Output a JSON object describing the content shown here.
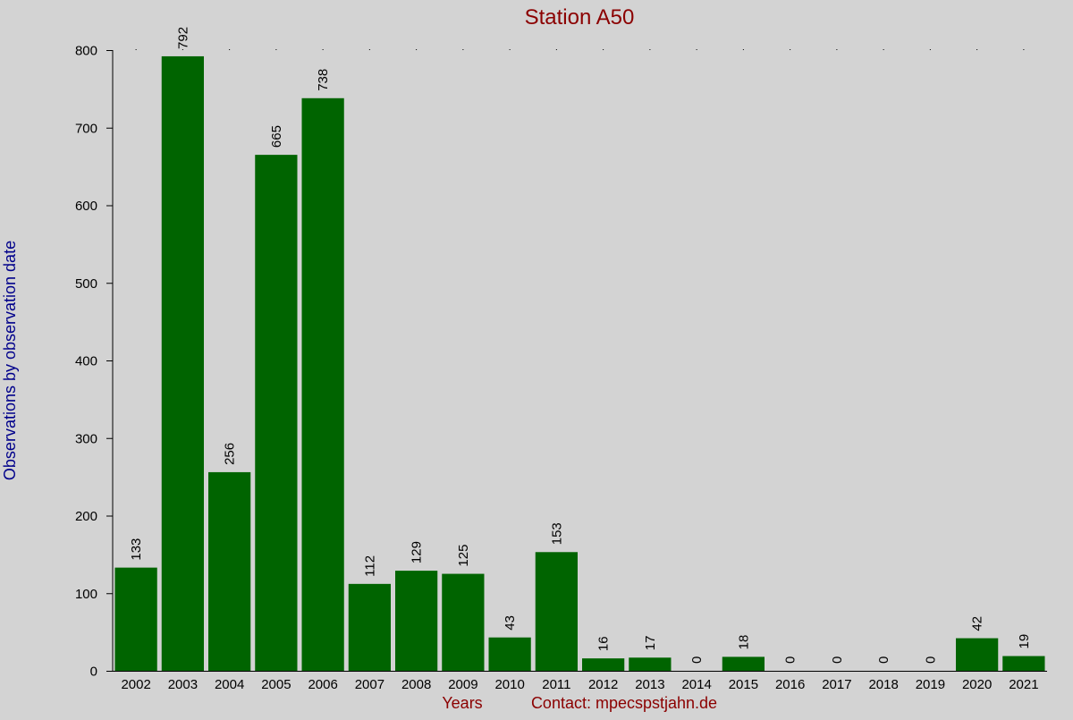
{
  "chart_data": {
    "type": "bar",
    "title": "Station A50",
    "xlabel": "Years",
    "ylabel": "Observations by observation date",
    "footer_contact": "Contact: mpecspstjahn.de",
    "categories": [
      "2002",
      "2003",
      "2004",
      "2005",
      "2006",
      "2007",
      "2008",
      "2009",
      "2010",
      "2011",
      "2012",
      "2013",
      "2014",
      "2015",
      "2016",
      "2017",
      "2018",
      "2019",
      "2020",
      "2021"
    ],
    "values": [
      133,
      792,
      256,
      665,
      738,
      112,
      129,
      125,
      43,
      153,
      16,
      17,
      0,
      18,
      0,
      0,
      0,
      0,
      42,
      19
    ],
    "ylim": [
      0,
      800
    ],
    "yticks": [
      0,
      100,
      200,
      300,
      400,
      500,
      600,
      700,
      800
    ],
    "grid": false,
    "colors": {
      "bar": "#006400",
      "title": "#8b0000",
      "xlabel": "#8b0000",
      "ylabel": "#00008b",
      "background": "#d3d3d3",
      "axis": "#000000"
    }
  }
}
